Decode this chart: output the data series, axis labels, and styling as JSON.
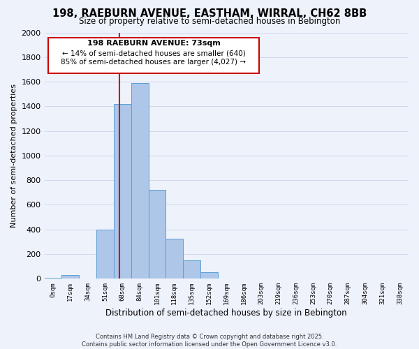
{
  "title": "198, RAEBURN AVENUE, EASTHAM, WIRRAL, CH62 8BB",
  "subtitle": "Size of property relative to semi-detached houses in Bebington",
  "xlabel": "Distribution of semi-detached houses by size in Bebington",
  "ylabel": "Number of semi-detached properties",
  "bin_labels": [
    "0sqm",
    "17sqm",
    "34sqm",
    "51sqm",
    "68sqm",
    "84sqm",
    "101sqm",
    "118sqm",
    "135sqm",
    "152sqm",
    "169sqm",
    "186sqm",
    "203sqm",
    "219sqm",
    "236sqm",
    "253sqm",
    "270sqm",
    "287sqm",
    "304sqm",
    "321sqm",
    "338sqm"
  ],
  "bin_counts": [
    5,
    30,
    0,
    400,
    1420,
    1590,
    720,
    325,
    150,
    55,
    0,
    0,
    0,
    0,
    0,
    0,
    0,
    0,
    0,
    0,
    0
  ],
  "bar_color": "#aec6e8",
  "bar_edge_color": "#5a9fd4",
  "vline_color": "#cc0000",
  "annotation_title": "198 RAEBURN AVENUE: 73sqm",
  "annotation_line1": "← 14% of semi-detached houses are smaller (640)",
  "annotation_line2": "85% of semi-detached houses are larger (4,027) →",
  "annotation_box_color": "#cc0000",
  "ylim": [
    0,
    2000
  ],
  "yticks": [
    0,
    200,
    400,
    600,
    800,
    1000,
    1200,
    1400,
    1600,
    1800,
    2000
  ],
  "footer_line1": "Contains HM Land Registry data © Crown copyright and database right 2025.",
  "footer_line2": "Contains public sector information licensed under the Open Government Licence v3.0.",
  "background_color": "#eef2fb",
  "grid_color": "#d0d8ee"
}
